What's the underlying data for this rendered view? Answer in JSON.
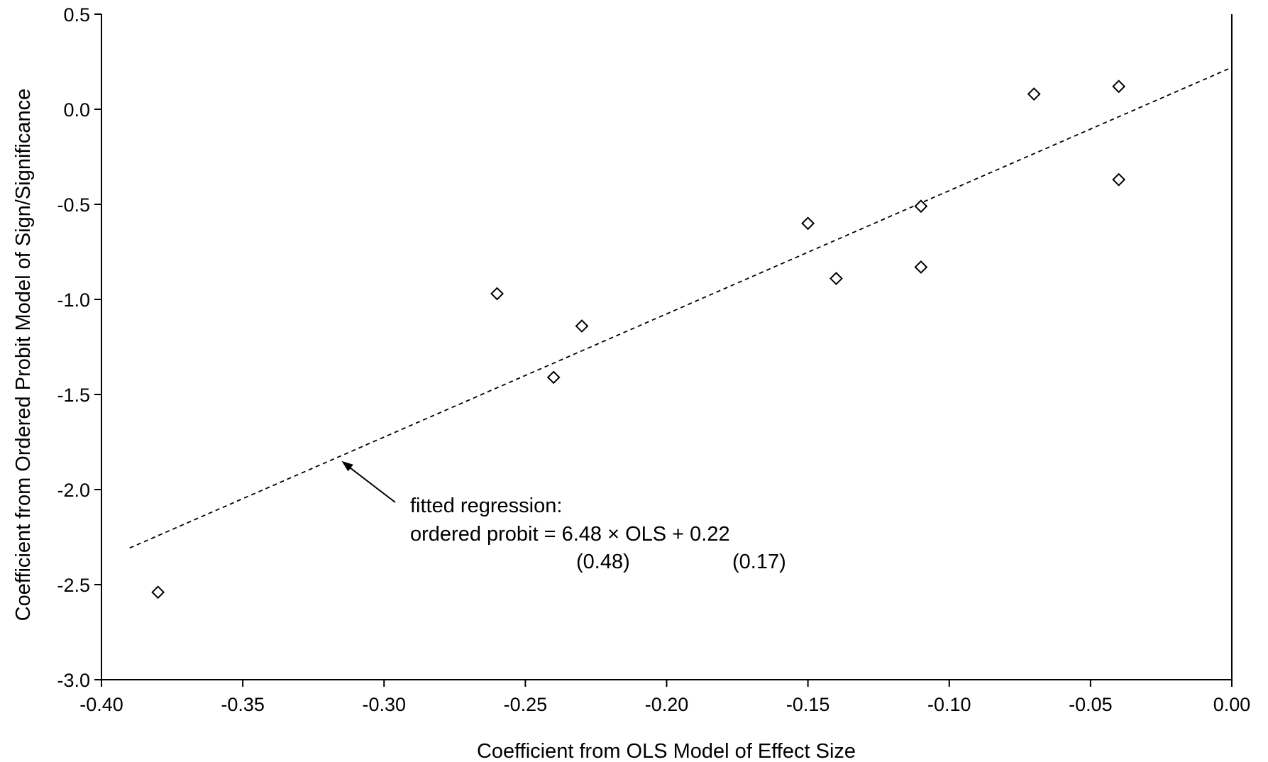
{
  "chart_data": {
    "type": "scatter",
    "xlabel": "Coefficient from OLS Model of Effect Size",
    "ylabel": "Coefficient from Ordered Probit Model of Sign/Significance",
    "xlim": [
      -0.4,
      0.0
    ],
    "ylim": [
      -3.0,
      0.5
    ],
    "x_ticks": [
      "-0.40",
      "-0.35",
      "-0.30",
      "-0.25",
      "-0.20",
      "-0.15",
      "-0.10",
      "-0.05",
      "0.00"
    ],
    "y_ticks": [
      "0.5",
      "0.0",
      "-0.5",
      "-1.0",
      "-1.5",
      "-2.0",
      "-2.5",
      "-3.0"
    ],
    "grid": false,
    "marker": "hollow-diamond",
    "points": [
      {
        "x": -0.38,
        "y": -2.54
      },
      {
        "x": -0.26,
        "y": -0.97
      },
      {
        "x": -0.24,
        "y": -1.41
      },
      {
        "x": -0.23,
        "y": -1.14
      },
      {
        "x": -0.15,
        "y": -0.6
      },
      {
        "x": -0.14,
        "y": -0.89
      },
      {
        "x": -0.11,
        "y": -0.51
      },
      {
        "x": -0.11,
        "y": -0.83
      },
      {
        "x": -0.07,
        "y": 0.08
      },
      {
        "x": -0.04,
        "y": 0.12
      },
      {
        "x": -0.04,
        "y": -0.37
      }
    ],
    "fit_line": {
      "slope": 6.48,
      "intercept": 0.22,
      "x_range": [
        -0.39,
        0.0
      ],
      "style": "dashed"
    },
    "annotation": {
      "line1": "fitted regression:",
      "line2": "ordered probit = 6.48 × OLS  +  0.22",
      "se_slope": "(0.48)",
      "se_intercept": "(0.17)",
      "arrow_target": {
        "x": -0.315,
        "y": -1.85
      }
    }
  }
}
